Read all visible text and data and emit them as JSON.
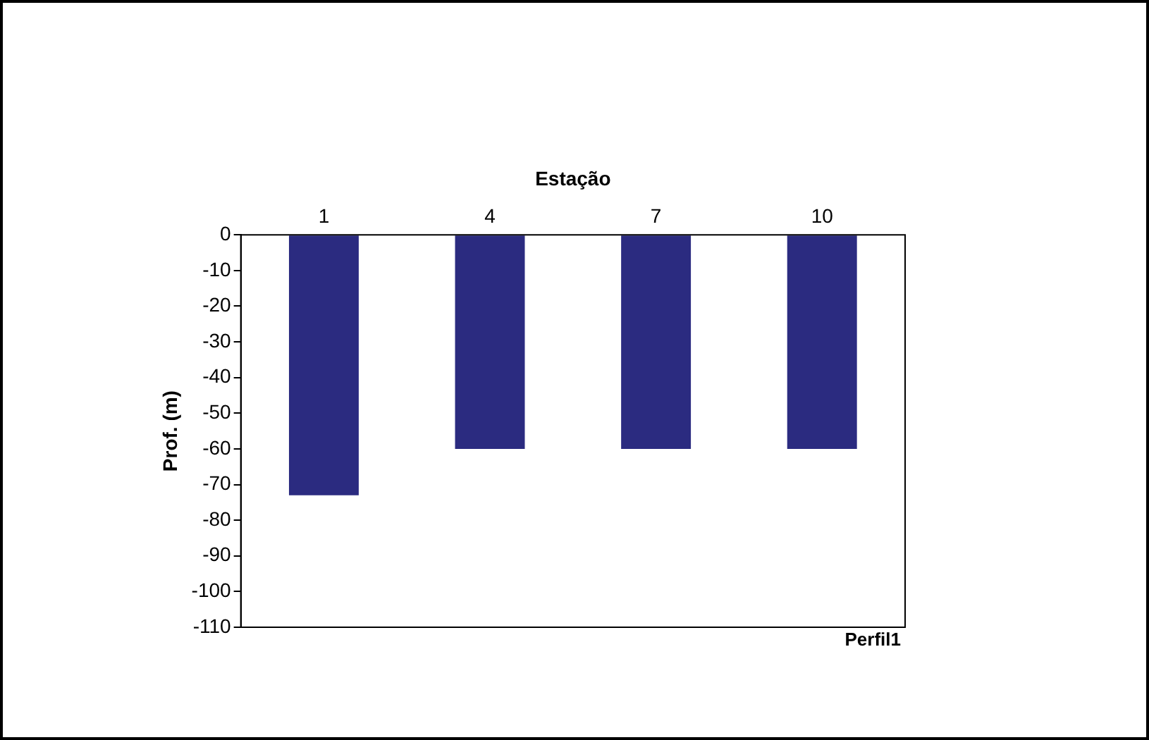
{
  "chart_data": {
    "type": "bar",
    "xlabel": "Estação",
    "ylabel": "Prof. (m)",
    "annotations": [
      "Perfil1"
    ],
    "categories": [
      "1",
      "4",
      "7",
      "10"
    ],
    "values": [
      -73,
      -60,
      -60,
      -60
    ],
    "color": "#2b2b80",
    "ylim": [
      -110,
      0
    ],
    "yticks": [
      0,
      -10,
      -20,
      -30,
      -40,
      -50,
      -60,
      -70,
      -80,
      -90,
      -100,
      -110
    ],
    "grid": false,
    "legend": false
  }
}
